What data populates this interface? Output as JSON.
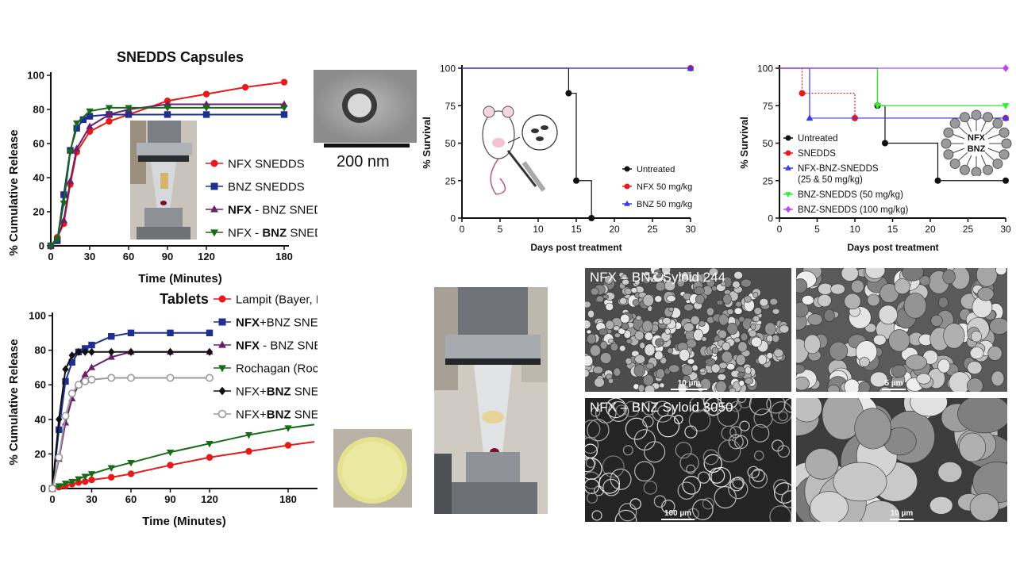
{
  "colors": {
    "red": "#e8191b",
    "navy": "#1f2f8f",
    "purple": "#6b1f6b",
    "green": "#176b17",
    "black": "#111111",
    "gray": "#9a9a9a",
    "blue": "#3a3aee",
    "lightgreen": "#33ee33",
    "violet": "#bb44ee"
  },
  "chart_data": [
    {
      "id": "capsules",
      "type": "line",
      "title": "SNEDDS Capsules",
      "xlabel": "Time (Minutes)",
      "ylabel": "% Cumulative Release",
      "xlim": [
        0,
        180
      ],
      "ylim": [
        0,
        100
      ],
      "xticks": [
        0,
        30,
        60,
        90,
        120,
        180
      ],
      "yticks": [
        0,
        20,
        40,
        60,
        80,
        100
      ],
      "series": [
        {
          "name": "NFX SNEDDS",
          "color": "#e8191b",
          "marker": "circle",
          "x": [
            0,
            5,
            10,
            15,
            20,
            30,
            45,
            60,
            90,
            120,
            150,
            180
          ],
          "y": [
            0,
            5,
            13,
            36,
            55,
            67,
            73,
            77,
            85,
            89,
            93,
            96
          ]
        },
        {
          "name": "BNZ SNEDDS",
          "color": "#1f2f8f",
          "marker": "square",
          "x": [
            0,
            5,
            10,
            15,
            20,
            25,
            30,
            45,
            60,
            90,
            120,
            180
          ],
          "y": [
            0,
            3,
            30,
            56,
            69,
            74,
            76,
            77,
            77,
            77,
            77,
            77
          ]
        },
        {
          "name_parts": [
            "NFX",
            " - BNZ SNEDDS"
          ],
          "bold_index": 0,
          "color": "#6b1f6b",
          "marker": "triangle-up",
          "x": [
            0,
            5,
            10,
            15,
            20,
            30,
            45,
            60,
            90,
            120,
            180
          ],
          "y": [
            0,
            4,
            15,
            38,
            57,
            70,
            77,
            80,
            83,
            83,
            83
          ]
        },
        {
          "name_parts": [
            "NFX - ",
            "BNZ",
            " SNEDDS"
          ],
          "bold_index": 1,
          "color": "#176b17",
          "marker": "triangle-down",
          "x": [
            0,
            5,
            10,
            15,
            20,
            30,
            45,
            60,
            90,
            120,
            180
          ],
          "y": [
            0,
            4,
            25,
            55,
            72,
            79,
            81,
            81,
            81,
            81,
            81
          ]
        }
      ]
    },
    {
      "id": "tablets",
      "type": "line",
      "title": "Tablets",
      "xlabel": "Time (Minutes)",
      "ylabel": "% Cumulative Release",
      "xlim": [
        0,
        200
      ],
      "ylim": [
        0,
        100
      ],
      "xticks": [
        0,
        30,
        60,
        90,
        120,
        180
      ],
      "yticks": [
        0,
        20,
        40,
        60,
        80,
        100
      ],
      "series": [
        {
          "name": "Lampit (Bayer, NFX)",
          "color": "#e8191b",
          "marker": "circle",
          "extend_to": 200,
          "x": [
            0,
            5,
            10,
            15,
            20,
            25,
            30,
            45,
            60,
            90,
            120,
            150,
            180,
            200
          ],
          "y": [
            0,
            0.8,
            1.5,
            2.5,
            3.5,
            4,
            5,
            6.5,
            8.5,
            13.5,
            18,
            21.5,
            25,
            27
          ]
        },
        {
          "name_parts": [
            "NFX",
            "+BNZ SNEDDS (RSPO)"
          ],
          "bold_index": 0,
          "color": "#1f2f8f",
          "marker": "square",
          "x": [
            0,
            5,
            10,
            15,
            20,
            25,
            30,
            45,
            60,
            90,
            120
          ],
          "y": [
            0,
            34,
            62,
            73,
            79,
            81,
            83,
            88,
            90,
            90,
            90
          ]
        },
        {
          "name_parts": [
            "NFX",
            " - BNZ SNEDDS (RLPO)"
          ],
          "bold_index": 0,
          "color": "#6b1f6b",
          "marker": "triangle-up",
          "x": [
            0,
            5,
            10,
            15,
            20,
            25,
            30,
            45,
            60,
            90,
            120
          ],
          "y": [
            0,
            17,
            38,
            52,
            60,
            66,
            70,
            76,
            79,
            79,
            79
          ]
        },
        {
          "name": "Rochagan (Roche, BNZ)",
          "color": "#176b17",
          "marker": "triangle-down",
          "extend_to": 200,
          "x": [
            0,
            5,
            10,
            15,
            20,
            25,
            30,
            45,
            60,
            90,
            120,
            150,
            180,
            200
          ],
          "y": [
            0,
            1.5,
            3,
            4,
            5.5,
            7,
            8.5,
            12,
            15,
            21,
            26,
            31,
            35,
            37
          ]
        },
        {
          "name_parts": [
            "NFX+",
            "BNZ",
            " SNEDDS (RSPO)"
          ],
          "bold_index": 1,
          "color": "#111111",
          "marker": "diamond",
          "x": [
            0,
            5,
            10,
            15,
            20,
            25,
            30,
            45,
            60,
            90,
            120
          ],
          "y": [
            0,
            40,
            69,
            77,
            79,
            79,
            79,
            79,
            79,
            79,
            79
          ]
        },
        {
          "name_parts": [
            "NFX+",
            "BNZ",
            " SNEDDS (RLPO)"
          ],
          "bold_index": 1,
          "color": "#9a9a9a",
          "marker": "open-circle",
          "x": [
            0,
            5,
            10,
            15,
            20,
            25,
            30,
            45,
            60,
            90,
            120
          ],
          "y": [
            0,
            18,
            42,
            55,
            60,
            62,
            63,
            64,
            64,
            64,
            64
          ]
        }
      ]
    },
    {
      "id": "survival1",
      "type": "line",
      "step": true,
      "title": "",
      "xlabel": "Days post treatment",
      "ylabel": "% Survival",
      "xlim": [
        0,
        30
      ],
      "ylim": [
        0,
        100
      ],
      "xticks": [
        0,
        5,
        10,
        15,
        20,
        25,
        30
      ],
      "yticks": [
        0,
        25,
        50,
        75,
        100
      ],
      "series": [
        {
          "name": "Untreated",
          "color": "#111111",
          "marker": "circle",
          "x": [
            0,
            14,
            15,
            17
          ],
          "y": [
            100,
            83.3,
            25,
            0
          ]
        },
        {
          "name": "NFX 50 mg/kg",
          "color": "#e8191b",
          "marker": "circle",
          "x": [
            0,
            30
          ],
          "y": [
            100,
            100
          ]
        },
        {
          "name": "BNZ 50 mg/kg",
          "color": "#3a3aee",
          "marker": "triangle-up",
          "x": [
            0,
            30
          ],
          "y": [
            100,
            100
          ]
        }
      ]
    },
    {
      "id": "survival2",
      "type": "line",
      "step": true,
      "title": "",
      "xlabel": "Days post treatment",
      "ylabel": "% Survival",
      "xlim": [
        0,
        30
      ],
      "ylim": [
        0,
        100
      ],
      "xticks": [
        0,
        5,
        10,
        15,
        20,
        25,
        30
      ],
      "yticks": [
        0,
        25,
        50,
        75,
        100
      ],
      "series": [
        {
          "name": "Untreated",
          "color": "#111111",
          "marker": "circle",
          "x": [
            0,
            13,
            14,
            21,
            30
          ],
          "y": [
            100,
            75,
            50,
            25,
            25
          ]
        },
        {
          "name": "SNEDDS",
          "color": "#e8191b",
          "marker": "circle",
          "dotted": true,
          "x": [
            0,
            3,
            10,
            30
          ],
          "y": [
            100,
            83.3,
            66.7,
            66.7
          ]
        },
        {
          "name_lines": [
            "NFX-BNZ-SNEDDS",
            "(25 & 50 mg/kg)"
          ],
          "color": "#3a3aee",
          "marker": "triangle-up",
          "x": [
            0,
            4,
            30
          ],
          "y": [
            100,
            66.7,
            66.7
          ]
        },
        {
          "name": "BNZ-SNEDDS (50 mg/kg)",
          "color": "#33ee33",
          "marker": "triangle-down",
          "x": [
            0,
            13,
            30
          ],
          "y": [
            100,
            75,
            75
          ]
        },
        {
          "name": "BNZ-SNEDDS (100 mg/kg)",
          "color": "#bb44ee",
          "marker": "diamond",
          "x": [
            0,
            30
          ],
          "y": [
            100,
            100
          ]
        }
      ]
    }
  ],
  "tem": {
    "scale_label": "200 nm"
  },
  "nanoparticle": {
    "label_top": "NFX",
    "label_bottom": "BNZ"
  },
  "sem": [
    {
      "title": "NFX – BNZ Syloid 244",
      "scale": "10 µm"
    },
    {
      "title": "",
      "scale": "5 µm"
    },
    {
      "title": "NFX – BNZ Syloid 3050",
      "scale": "100 µm"
    },
    {
      "title": "",
      "scale": "10 µm"
    }
  ]
}
